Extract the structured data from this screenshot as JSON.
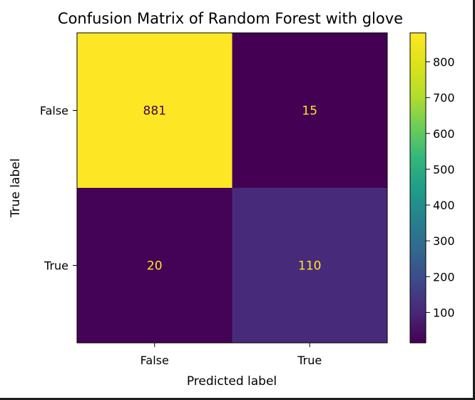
{
  "chart_data": {
    "type": "heatmap",
    "title": "Confusion Matrix of Random Forest with glove",
    "xlabel": "Predicted label",
    "ylabel": "True label",
    "x_categories": [
      "False",
      "True"
    ],
    "y_categories": [
      "False",
      "True"
    ],
    "values": [
      [
        881,
        15
      ],
      [
        20,
        110
      ]
    ],
    "colormap": "viridis",
    "colorbar": {
      "min": 15,
      "max": 881,
      "ticks": [
        100,
        200,
        300,
        400,
        500,
        600,
        700,
        800
      ]
    },
    "colors": {
      "low_cell_text": "#fde725",
      "high_cell_text": "#440154"
    }
  }
}
